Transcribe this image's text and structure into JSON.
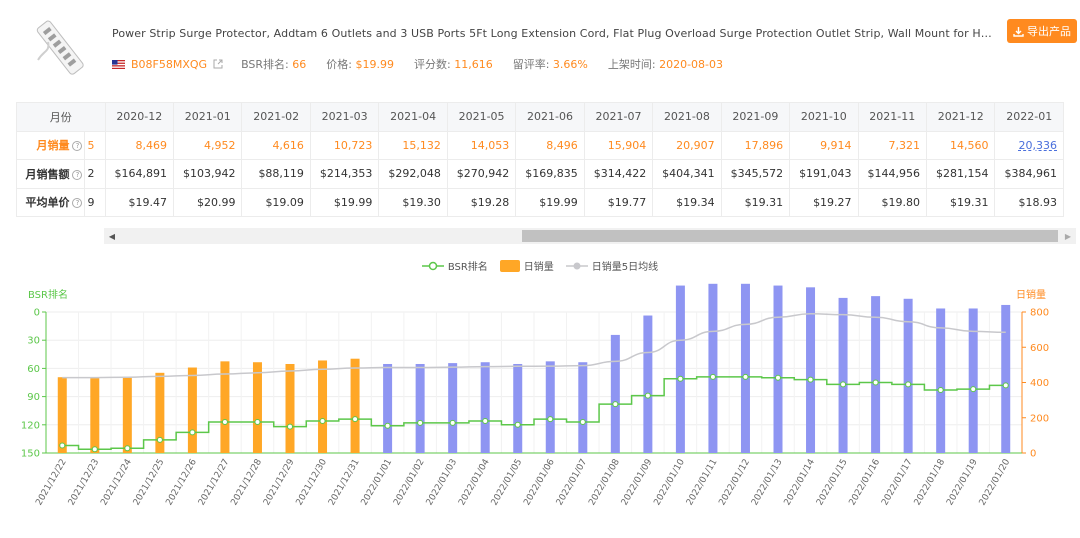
{
  "header": {
    "title": "Power Strip Surge Protector, Addtam 6 Outlets and 3 USB Ports 5Ft Long Extension Cord, Flat Plug Overload Surge Protection Outlet Strip, Wall Mount for Home, Office ...",
    "asin": "B08F58MXQG",
    "bsr_label": "BSR排名:",
    "bsr_value": "66",
    "price_label": "价格:",
    "price_value": "$19.99",
    "reviews_label": "评分数:",
    "reviews_value": "11,616",
    "retention_label": "留评率:",
    "retention_value": "3.66%",
    "listed_label": "上架时间:",
    "listed_value": "2020-08-03",
    "export_label": "导出产品",
    "colors": {
      "accent": "#ff8a1f",
      "bsr": "#5cc74a",
      "sales": "#ffa726",
      "sales_future": "#8e95f2",
      "avg": "#c8c8cc"
    }
  },
  "table": {
    "corner": "月份",
    "months": [
      "2020-12",
      "2021-01",
      "2021-02",
      "2021-03",
      "2021-04",
      "2021-05",
      "2021-06",
      "2021-07",
      "2021-08",
      "2021-09",
      "2021-10",
      "2021-11",
      "2021-12",
      "2022-01"
    ],
    "rows": [
      {
        "label": "月销量",
        "index": "5",
        "style": "orange",
        "values": [
          "8,469",
          "4,952",
          "4,616",
          "10,723",
          "15,132",
          "14,053",
          "8,496",
          "15,904",
          "20,907",
          "17,896",
          "9,914",
          "7,321",
          "14,560",
          "20,336"
        ]
      },
      {
        "label": "月销售额",
        "index": "2",
        "style": "normal",
        "values": [
          "$164,891",
          "$103,942",
          "$88,119",
          "$214,353",
          "$292,048",
          "$270,942",
          "$169,835",
          "$314,422",
          "$404,341",
          "$345,572",
          "$191,043",
          "$144,956",
          "$281,154",
          "$384,961"
        ]
      },
      {
        "label": "平均单价",
        "index": "9",
        "style": "normal",
        "values": [
          "$19.47",
          "$20.99",
          "$19.09",
          "$19.99",
          "$19.30",
          "$19.28",
          "$19.99",
          "$19.77",
          "$19.34",
          "$19.31",
          "$19.27",
          "$19.80",
          "$19.31",
          "$18.93"
        ]
      }
    ]
  },
  "chart_data": {
    "type": "bar",
    "legend": [
      "BSR排名",
      "日销量",
      "日销量5日均线"
    ],
    "left_axis_title": "BSR排名",
    "right_axis_title": "日销量",
    "left_ylim": [
      0,
      150
    ],
    "left_ticks": [
      "0",
      "30",
      "60",
      "90",
      "120",
      "150"
    ],
    "right_ylim": [
      0,
      800
    ],
    "right_ticks": [
      "0",
      "200",
      "400",
      "600",
      "800"
    ],
    "categories": [
      "2021/12/22",
      "2021/12/23",
      "2021/12/24",
      "2021/12/25",
      "2021/12/26",
      "2021/12/27",
      "2021/12/28",
      "2021/12/29",
      "2021/12/30",
      "2021/12/31",
      "2022/01/01",
      "2022/01/02",
      "2022/01/03",
      "2022/01/04",
      "2022/01/05",
      "2022/01/06",
      "2022/01/07",
      "2022/01/08",
      "2022/01/09",
      "2022/01/10",
      "2022/01/11",
      "2022/01/12",
      "2022/01/13",
      "2022/01/14",
      "2022/01/15",
      "2022/01/16",
      "2022/01/17",
      "2022/01/18",
      "2022/01/19",
      "2022/01/20"
    ],
    "series": [
      {
        "name": "日销量",
        "axis": "right",
        "values": [
          430,
          425,
          428,
          455,
          485,
          520,
          515,
          505,
          525,
          535,
          505,
          505,
          510,
          515,
          505,
          520,
          515,
          670,
          780,
          950,
          960,
          960,
          950,
          940,
          880,
          890,
          875,
          820,
          820,
          840
        ]
      },
      {
        "name": "BSR排名",
        "axis": "left",
        "values": [
          142,
          146,
          145,
          136,
          128,
          117,
          117,
          122,
          116,
          114,
          121,
          118,
          118,
          116,
          120,
          114,
          117,
          98,
          89,
          71,
          69,
          69,
          70,
          72,
          77,
          75,
          77,
          83,
          82,
          78
        ]
      },
      {
        "name": "日销量5日均线",
        "axis": "right",
        "values": [
          428,
          428,
          430,
          435,
          440,
          448,
          455,
          465,
          475,
          482,
          485,
          485,
          487,
          490,
          492,
          493,
          496,
          520,
          570,
          640,
          690,
          730,
          770,
          790,
          785,
          770,
          745,
          710,
          690,
          685
        ]
      }
    ]
  }
}
